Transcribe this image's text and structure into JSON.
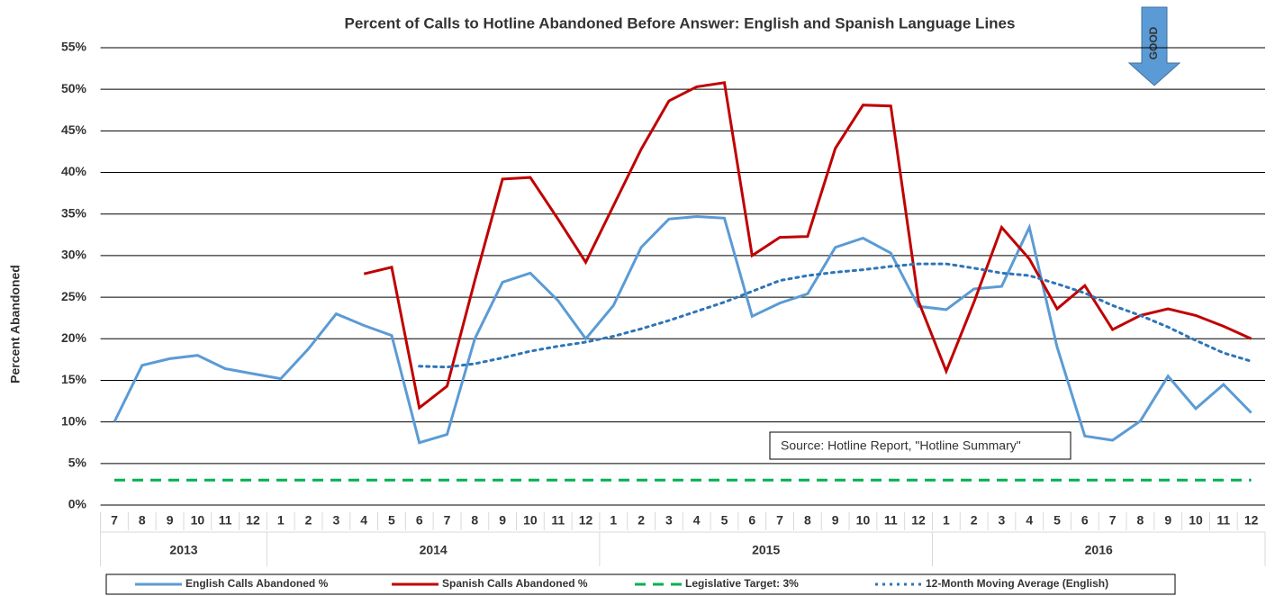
{
  "chart_data": {
    "type": "line",
    "title": "Percent of Calls to Hotline Abandoned Before Answer: English and Spanish Language Lines",
    "y_label": "Percent Abandoned",
    "categories": [
      "7",
      "8",
      "9",
      "10",
      "11",
      "12",
      "1",
      "2",
      "3",
      "4",
      "5",
      "6",
      "7",
      "8",
      "9",
      "10",
      "11",
      "12",
      "1",
      "2",
      "3",
      "4",
      "5",
      "6",
      "7",
      "8",
      "9",
      "10",
      "11",
      "12",
      "1",
      "2",
      "3",
      "4",
      "5",
      "6",
      "7",
      "8",
      "9",
      "10",
      "11",
      "12"
    ],
    "x_groups": [
      "2013",
      "2014",
      "2015",
      "2016"
    ],
    "ylim": [
      0,
      55
    ],
    "yticks": [
      {
        "value": 0,
        "label": "0%"
      },
      {
        "value": 5,
        "label": "5%"
      },
      {
        "value": 10,
        "label": "10%"
      },
      {
        "value": 15,
        "label": "15%"
      },
      {
        "value": 20,
        "label": "20%"
      },
      {
        "value": 25,
        "label": "25%"
      },
      {
        "value": 30,
        "label": "30%"
      },
      {
        "value": 35,
        "label": "35%"
      },
      {
        "value": 40,
        "label": "40%"
      },
      {
        "value": 45,
        "label": "45%"
      },
      {
        "value": 50,
        "label": "50%"
      },
      {
        "value": 55,
        "label": "55%"
      }
    ],
    "grid": true,
    "legend": "bottom",
    "series": [
      {
        "name": "English Calls Abandoned %",
        "color": "#5b9bd5",
        "line_style": "solid",
        "values": [
          10.0,
          16.8,
          17.6,
          18.0,
          16.4,
          15.8,
          15.2,
          18.8,
          23.0,
          21.6,
          20.4,
          7.5,
          8.5,
          20.0,
          26.8,
          27.9,
          24.6,
          20.0,
          24.0,
          31.0,
          34.4,
          34.7,
          34.5,
          22.7,
          24.3,
          25.4,
          31.0,
          32.1,
          30.3,
          23.9,
          23.5,
          26.0,
          26.3,
          33.4,
          19.0,
          8.3,
          7.8,
          10.1,
          15.5,
          11.6,
          14.5,
          11.1
        ]
      },
      {
        "name": "Spanish Calls Abandoned %",
        "color": "#c00000",
        "line_style": "solid",
        "values": [
          null,
          null,
          null,
          null,
          null,
          null,
          null,
          null,
          null,
          27.8,
          28.6,
          11.7,
          14.3,
          27.0,
          39.2,
          39.4,
          34.4,
          29.2,
          36.0,
          42.8,
          48.6,
          50.3,
          50.8,
          30.0,
          32.2,
          32.3,
          42.9,
          48.1,
          48.0,
          24.5,
          16.1,
          24.4,
          33.4,
          29.6,
          23.6,
          26.4,
          21.1,
          22.8,
          23.6,
          22.8,
          21.5,
          20.0
        ]
      },
      {
        "name": "Legislative Target: 3%",
        "color": "#00b050",
        "line_style": "dashed",
        "values": [
          3,
          3,
          3,
          3,
          3,
          3,
          3,
          3,
          3,
          3,
          3,
          3,
          3,
          3,
          3,
          3,
          3,
          3,
          3,
          3,
          3,
          3,
          3,
          3,
          3,
          3,
          3,
          3,
          3,
          3,
          3,
          3,
          3,
          3,
          3,
          3,
          3,
          3,
          3,
          3,
          3,
          3
        ]
      },
      {
        "name": "12-Month Moving Average (English)",
        "color": "#2e75b6",
        "line_style": "dotted",
        "values": [
          null,
          null,
          null,
          null,
          null,
          null,
          null,
          null,
          null,
          null,
          null,
          16.7,
          16.6,
          17.0,
          17.7,
          18.5,
          19.1,
          19.6,
          20.3,
          21.2,
          22.2,
          23.3,
          24.4,
          25.7,
          27.0,
          27.6,
          28.0,
          28.3,
          28.7,
          29.0,
          29.0,
          28.5,
          27.9,
          27.6,
          26.6,
          25.5,
          24.0,
          22.8,
          21.4,
          19.8,
          18.3,
          17.3
        ]
      }
    ],
    "annotations": [
      "Source: Hotline Report, \"Hotline Summary\"",
      "GOOD"
    ]
  }
}
